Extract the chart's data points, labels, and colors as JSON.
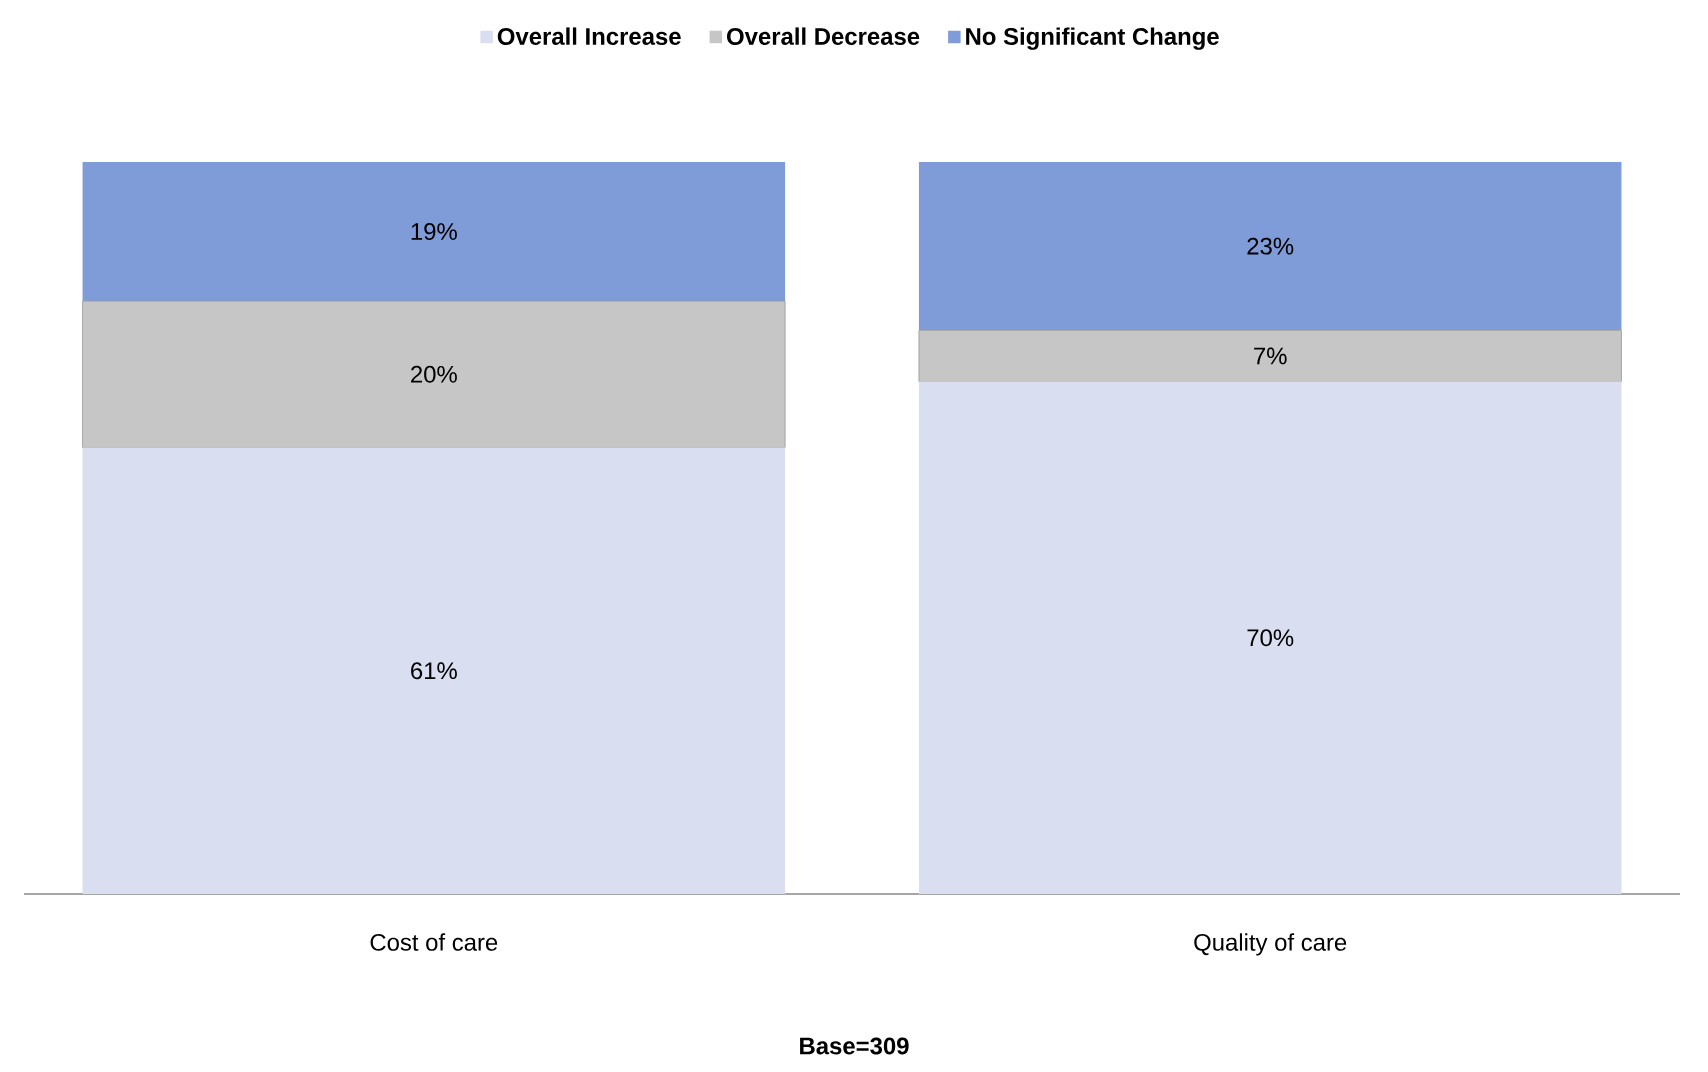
{
  "chart_data": {
    "type": "bar",
    "stacked": true,
    "categories": [
      "Cost of care",
      "Quality of care"
    ],
    "ylim": [
      0,
      100
    ],
    "legend": "top",
    "series": [
      {
        "name": "Overall Increase",
        "color": "#d9def0",
        "values": [
          61,
          70
        ],
        "value_labels": [
          "61%",
          "70%"
        ]
      },
      {
        "name": "Overall Decrease",
        "color": "#c6c6c6",
        "values": [
          20,
          7
        ],
        "value_labels": [
          "20%",
          "7%"
        ]
      },
      {
        "name": "No Significant Change",
        "color": "#7f9bd8",
        "values": [
          19,
          23
        ],
        "value_labels": [
          "19%",
          "23%"
        ]
      }
    ],
    "annotations": [
      "Base=309"
    ]
  }
}
